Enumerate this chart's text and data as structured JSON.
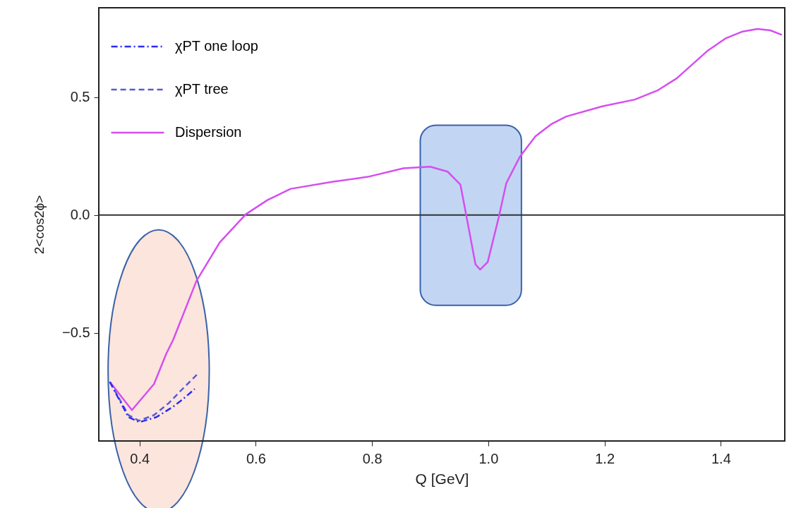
{
  "chart_data": {
    "type": "line",
    "xlabel": "Q [GeV]",
    "ylabel": "2<cos2ϕ>",
    "xlim": [
      0.33,
      1.51
    ],
    "ylim": [
      -0.96,
      0.88
    ],
    "xticks": [
      0.4,
      0.6,
      0.8,
      {
        "value": 1.0,
        "label": "1.0"
      },
      1.2,
      1.4
    ],
    "yticks": [
      {
        "value": -0.5,
        "label": "−0.5"
      },
      {
        "value": 0,
        "label": "0.0"
      },
      0.5
    ],
    "grid": false,
    "legend": "top left",
    "marker": "none",
    "ref_lines": [
      {
        "axis": "y",
        "value": 0,
        "color": "#333333"
      }
    ],
    "series": [
      {
        "name": "χPT one loop",
        "color": "#2c2cf0",
        "line_style": "dashdot",
        "x": [
          0.349,
          0.381,
          0.4,
          0.429,
          0.458,
          0.474,
          0.495
        ],
        "values": [
          -0.709,
          -0.859,
          -0.88,
          -0.859,
          -0.814,
          -0.784,
          -0.739
        ]
      },
      {
        "name": "χPT tree",
        "color": "#5a5ad6",
        "line_style": "dashed",
        "x": [
          0.349,
          0.381,
          0.399,
          0.425,
          0.45,
          0.474,
          0.501
        ],
        "values": [
          -0.709,
          -0.85,
          -0.874,
          -0.85,
          -0.8,
          -0.739,
          -0.673
        ]
      },
      {
        "name": "Dispersion",
        "color": "#d54ef0",
        "line_style": "solid",
        "x": [
          0.349,
          0.387,
          0.425,
          0.446,
          0.458,
          0.498,
          0.538,
          0.583,
          0.62,
          0.66,
          0.733,
          0.793,
          0.854,
          0.9,
          0.93,
          0.952,
          0.962,
          0.978,
          0.986,
          0.999,
          1.018,
          1.031,
          1.054,
          1.081,
          1.108,
          1.134,
          1.197,
          1.252,
          1.292,
          1.324,
          1.377,
          1.409,
          1.436,
          1.463,
          1.485,
          1.505
        ],
        "values": [
          -0.709,
          -0.829,
          -0.718,
          -0.59,
          -0.53,
          -0.28,
          -0.117,
          0.003,
          0.063,
          0.111,
          0.141,
          0.162,
          0.198,
          0.205,
          0.184,
          0.129,
          0,
          -0.21,
          -0.232,
          -0.2,
          -0.01,
          0.135,
          0.246,
          0.334,
          0.385,
          0.418,
          0.462,
          0.49,
          0.53,
          0.58,
          0.697,
          0.751,
          0.778,
          0.79,
          0.784,
          0.765
        ]
      }
    ]
  }
}
